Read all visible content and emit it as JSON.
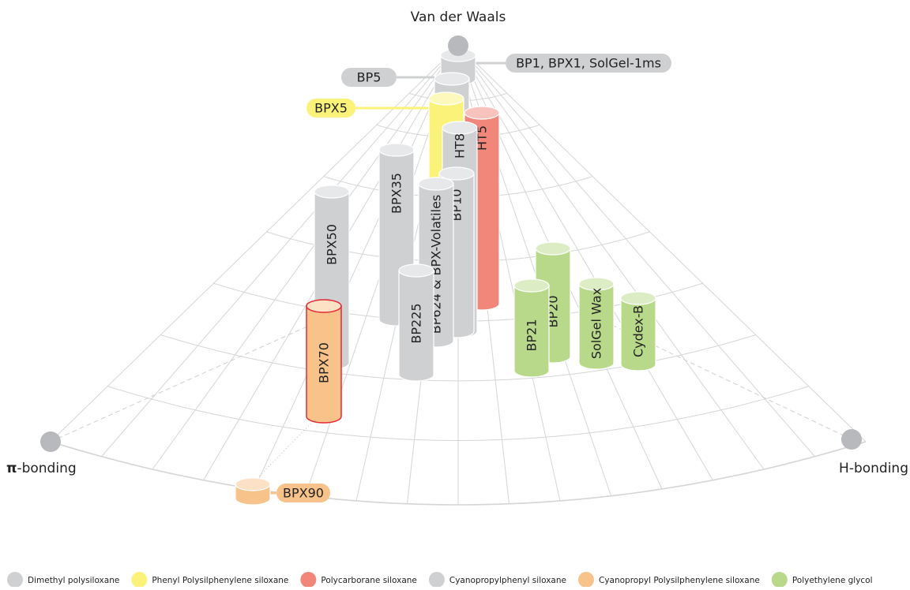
{
  "axes": {
    "top": "Van der Waals",
    "left": {
      "symbol": "π",
      "text": "-bonding"
    },
    "right": "H-bonding"
  },
  "columns": [
    {
      "label": "BP1, BPX1, SolGel-1ms",
      "color": "#cfd0d2"
    },
    {
      "label": "BP5",
      "color": "#cfd0d2"
    },
    {
      "label": "BPX5",
      "color": "#fbf27a"
    },
    {
      "label": "HT5",
      "color": "#f0877a"
    },
    {
      "label": "HT8",
      "color": "#cfd0d2"
    },
    {
      "label": "BPX35",
      "color": "#cfd0d2"
    },
    {
      "label": "BP10",
      "color": "#cfd0d2"
    },
    {
      "label": "BPX50",
      "color": "#cfd0d2"
    },
    {
      "label": "BP624 & BPX-Volatiles",
      "color": "#cfd0d2"
    },
    {
      "label": "BP225",
      "color": "#cfd0d2"
    },
    {
      "label": "BPX70",
      "color": "#f8c38a"
    },
    {
      "label": "BP20",
      "color": "#b9d98a"
    },
    {
      "label": "BP21",
      "color": "#b9d98a"
    },
    {
      "label": "SolGel Wax",
      "color": "#b9d98a"
    },
    {
      "label": "Cydex-B",
      "color": "#b9d98a"
    },
    {
      "label": "BPX90",
      "color": "#f8c38a"
    }
  ],
  "legend": [
    {
      "label": "Dimethyl polysiloxane",
      "color": "#cfd0d2"
    },
    {
      "label": "Phenyl Polysilphenylene siloxane",
      "color": "#fbf27a"
    },
    {
      "label": "Polycarborane siloxane",
      "color": "#f0877a"
    },
    {
      "label": "Cyanopropylphenyl siloxane",
      "color": "#cfd0d2"
    },
    {
      "label": "Cyanopropyl Polysilphenylene siloxane",
      "color": "#f8c38a"
    },
    {
      "label": "Polyethylene glycol",
      "color": "#b9d98a"
    }
  ]
}
